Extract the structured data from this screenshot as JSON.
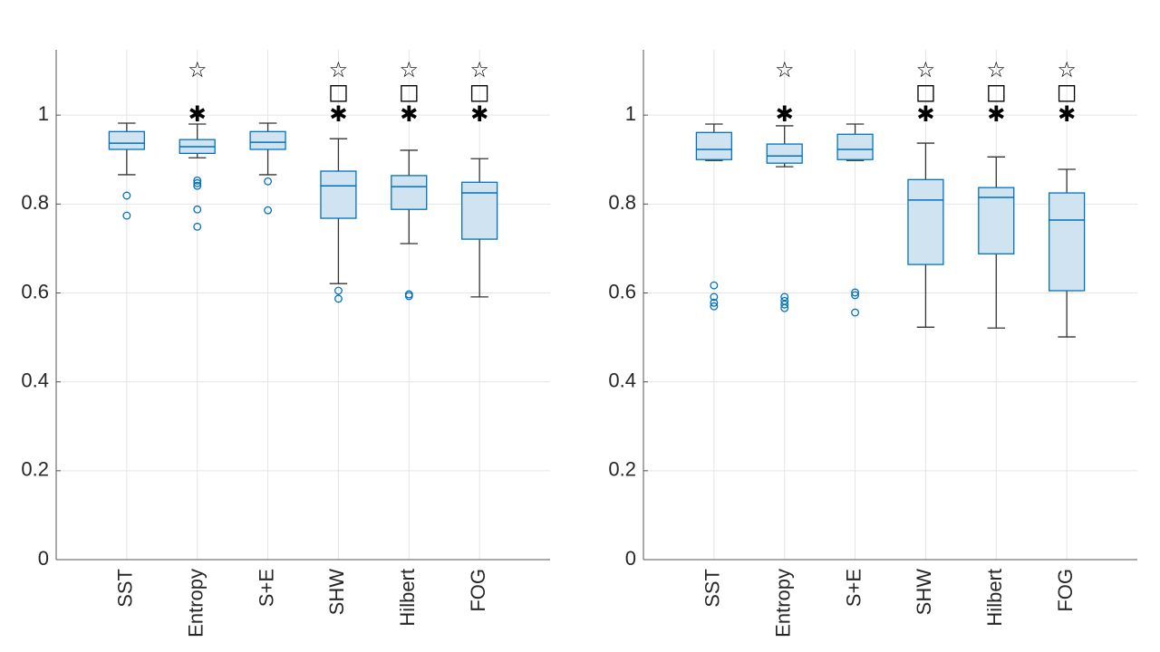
{
  "chart_data": [
    {
      "type": "box",
      "categories": [
        "SST",
        "Entropy",
        "S+E",
        "SHW",
        "Hilbert",
        "FOG"
      ],
      "xlim": [
        0,
        7
      ],
      "ylim": [
        0,
        1.147
      ],
      "yticks": [
        0,
        0.2,
        0.4,
        0.6,
        0.8,
        1
      ],
      "grid": true,
      "box_color": "#0072bd",
      "box_fill": "#cfe3f1",
      "whisker_color": "#333333",
      "boxes": [
        {
          "whislo": 0.866,
          "q1": 0.923,
          "med": 0.937,
          "q3": 0.963,
          "whishi": 0.982,
          "fliers": [
            0.819,
            0.774
          ],
          "markers": []
        },
        {
          "whislo": 0.904,
          "q1": 0.914,
          "med": 0.929,
          "q3": 0.945,
          "whishi": 0.98,
          "fliers": [
            0.853,
            0.847,
            0.841,
            0.788,
            0.749
          ],
          "markers": [
            {
              "symbol": "☆",
              "y": 1.1
            },
            {
              "symbol": "✱",
              "y": 1.0
            }
          ]
        },
        {
          "whislo": 0.866,
          "q1": 0.923,
          "med": 0.939,
          "q3": 0.963,
          "whishi": 0.982,
          "fliers": [
            0.851,
            0.786
          ],
          "markers": []
        },
        {
          "whislo": 0.621,
          "q1": 0.768,
          "med": 0.841,
          "q3": 0.874,
          "whishi": 0.947,
          "fliers": [
            0.605,
            0.587
          ],
          "markers": [
            {
              "symbol": "☆",
              "y": 1.1
            },
            {
              "symbol": "□",
              "y": 1.05
            },
            {
              "symbol": "✱",
              "y": 1.0
            }
          ]
        },
        {
          "whislo": 0.711,
          "q1": 0.788,
          "med": 0.839,
          "q3": 0.864,
          "whishi": 0.921,
          "fliers": [
            0.597,
            0.593
          ],
          "markers": [
            {
              "symbol": "☆",
              "y": 1.1
            },
            {
              "symbol": "□",
              "y": 1.05
            },
            {
              "symbol": "✱",
              "y": 1.0
            }
          ]
        },
        {
          "whislo": 0.591,
          "q1": 0.721,
          "med": 0.825,
          "q3": 0.849,
          "whishi": 0.902,
          "fliers": [],
          "markers": [
            {
              "symbol": "☆",
              "y": 1.1
            },
            {
              "symbol": "□",
              "y": 1.05
            },
            {
              "symbol": "✱",
              "y": 1.0
            }
          ]
        }
      ]
    },
    {
      "type": "box",
      "categories": [
        "SST",
        "Entropy",
        "S+E",
        "SHW",
        "Hilbert",
        "FOG"
      ],
      "xlim": [
        0,
        7
      ],
      "ylim": [
        0,
        1.147
      ],
      "yticks": [
        0,
        0.2,
        0.4,
        0.6,
        0.8,
        1
      ],
      "grid": true,
      "box_color": "#0072bd",
      "box_fill": "#cfe3f1",
      "whisker_color": "#333333",
      "boxes": [
        {
          "whislo": 0.898,
          "q1": 0.9,
          "med": 0.923,
          "q3": 0.961,
          "whishi": 0.98,
          "fliers": [
            0.617,
            0.591,
            0.578,
            0.57
          ],
          "markers": []
        },
        {
          "whislo": 0.884,
          "q1": 0.892,
          "med": 0.908,
          "q3": 0.935,
          "whishi": 0.976,
          "fliers": [
            0.591,
            0.582,
            0.574,
            0.566
          ],
          "markers": [
            {
              "symbol": "☆",
              "y": 1.1
            },
            {
              "symbol": "✱",
              "y": 1.0
            }
          ]
        },
        {
          "whislo": 0.898,
          "q1": 0.9,
          "med": 0.923,
          "q3": 0.957,
          "whishi": 0.98,
          "fliers": [
            0.601,
            0.595,
            0.556
          ],
          "markers": []
        },
        {
          "whislo": 0.523,
          "q1": 0.664,
          "med": 0.809,
          "q3": 0.855,
          "whishi": 0.937,
          "fliers": [],
          "markers": [
            {
              "symbol": "☆",
              "y": 1.1
            },
            {
              "symbol": "□",
              "y": 1.05
            },
            {
              "symbol": "✱",
              "y": 1.0
            }
          ]
        },
        {
          "whislo": 0.521,
          "q1": 0.688,
          "med": 0.815,
          "q3": 0.837,
          "whishi": 0.906,
          "fliers": [],
          "markers": [
            {
              "symbol": "☆",
              "y": 1.1
            },
            {
              "symbol": "□",
              "y": 1.05
            },
            {
              "symbol": "✱",
              "y": 1.0
            }
          ]
        },
        {
          "whislo": 0.501,
          "q1": 0.605,
          "med": 0.764,
          "q3": 0.825,
          "whishi": 0.878,
          "fliers": [],
          "markers": [
            {
              "symbol": "☆",
              "y": 1.1
            },
            {
              "symbol": "□",
              "y": 1.05
            },
            {
              "symbol": "✱",
              "y": 1.0
            }
          ]
        }
      ]
    }
  ]
}
